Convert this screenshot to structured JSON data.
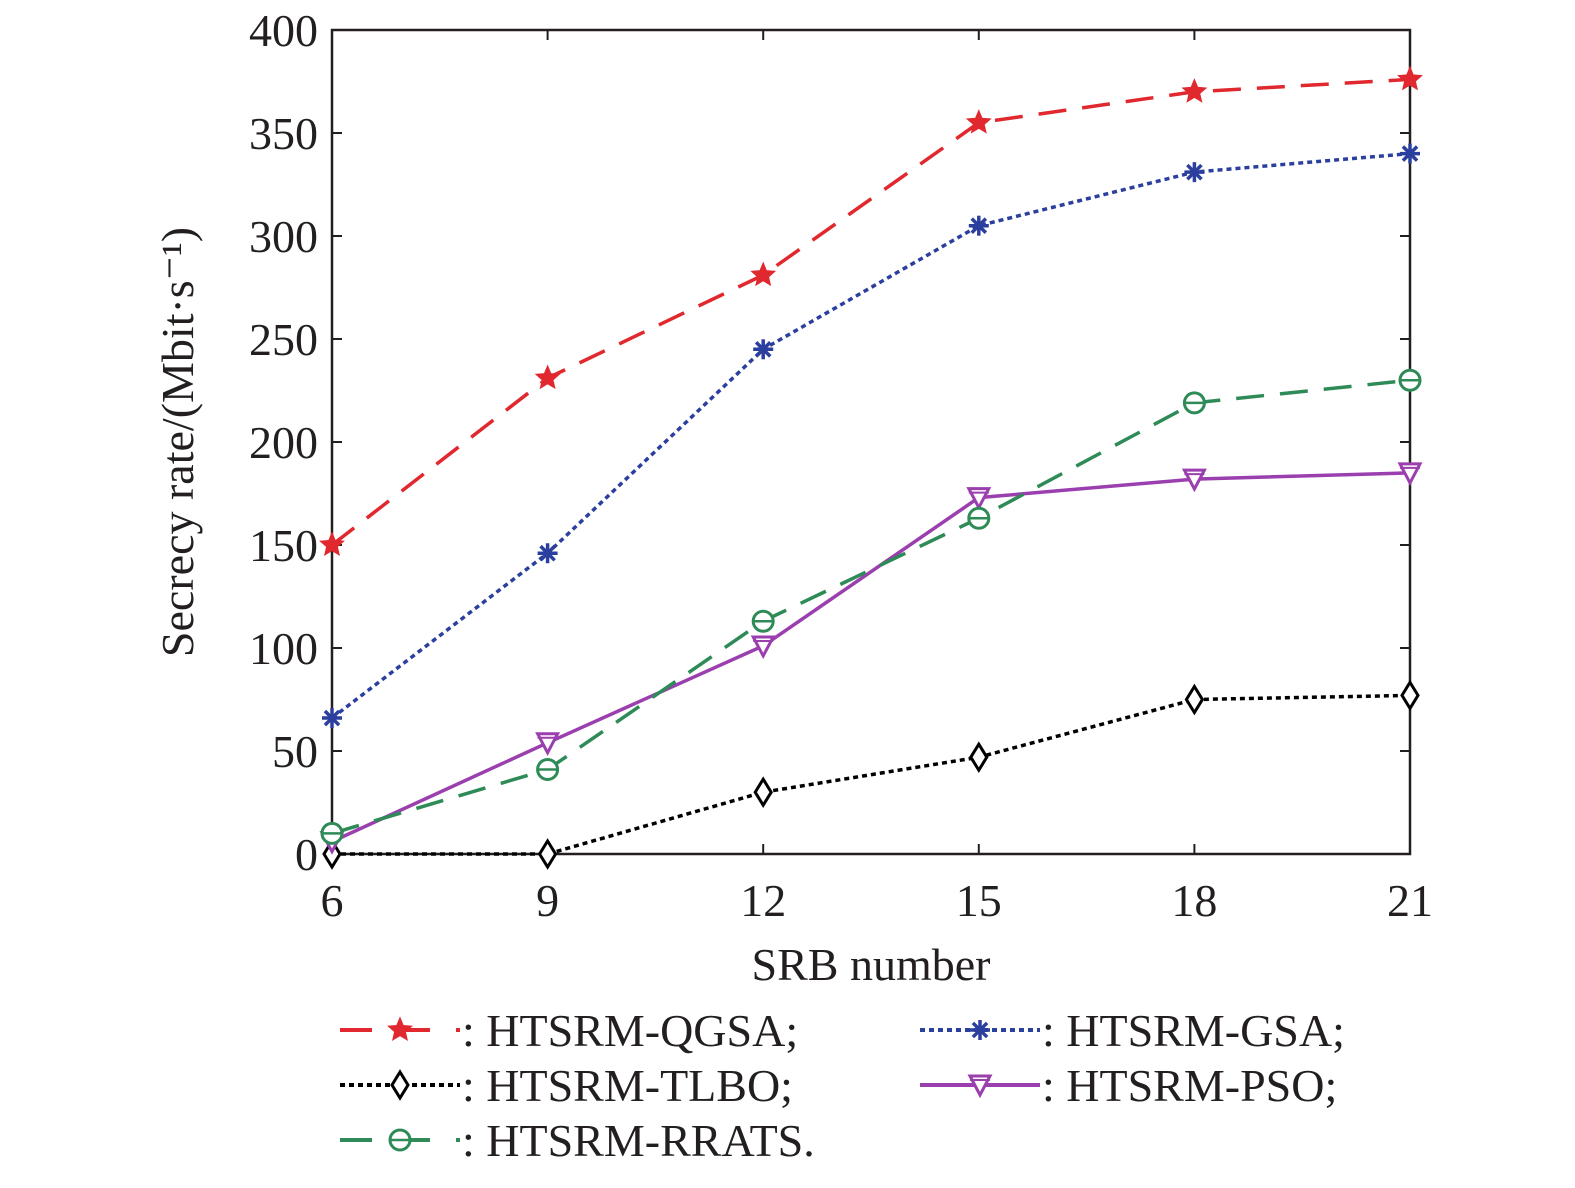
{
  "chart_data": {
    "type": "line",
    "title": "",
    "xlabel": "SRB number",
    "ylabel": "Secrecy rate/(Mbit·s⁻¹)",
    "x": [
      6,
      9,
      12,
      15,
      18,
      21
    ],
    "xticks": [
      "6",
      "9",
      "12",
      "15",
      "18",
      "21"
    ],
    "yticks": [
      "0",
      "50",
      "100",
      "150",
      "200",
      "250",
      "300",
      "350",
      "400"
    ],
    "xlim": [
      6,
      21
    ],
    "ylim": [
      0,
      400
    ],
    "grid": false,
    "legend_placement": "bottom",
    "series": [
      {
        "name": "HTSRM-QGSA",
        "legend_text": ": HTSRM-QGSA;",
        "color": "#e0282e",
        "dash": "dashed",
        "marker": "star",
        "values": [
          150,
          231,
          281,
          355,
          370,
          376
        ]
      },
      {
        "name": "HTSRM-GSA",
        "legend_text": ": HTSRM-GSA;",
        "color": "#2b3f9e",
        "dash": "dotted",
        "marker": "asterisk",
        "values": [
          66,
          146,
          245,
          305,
          331,
          340
        ]
      },
      {
        "name": "HTSRM-TLBO",
        "legend_text": ": HTSRM-TLBO;",
        "color": "#000000",
        "dash": "dotted",
        "marker": "diamond",
        "values": [
          0,
          0,
          30,
          47,
          75,
          77
        ]
      },
      {
        "name": "HTSRM-PSO",
        "legend_text": ": HTSRM-PSO;",
        "color": "#9b3faf",
        "dash": "solid",
        "marker": "triangle-down",
        "values": [
          6,
          54,
          101,
          173,
          182,
          185
        ]
      },
      {
        "name": "HTSRM-RRATS",
        "legend_text": ": HTSRM-RRATS.",
        "color": "#2e8b57",
        "dash": "dashed",
        "marker": "circle-bar",
        "values": [
          10,
          41,
          113,
          163,
          219,
          230
        ]
      }
    ]
  }
}
